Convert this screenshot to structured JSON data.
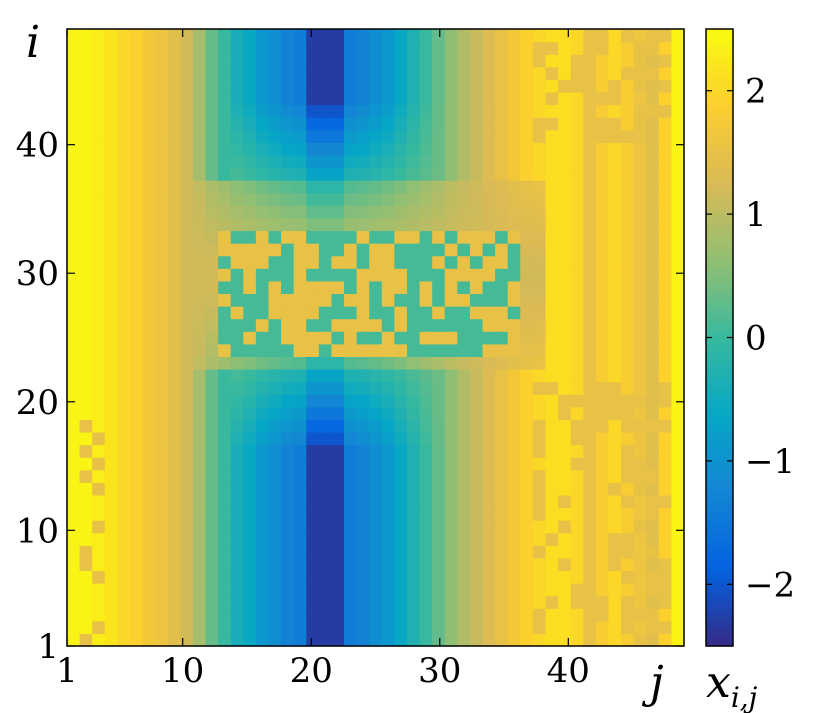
{
  "chart_data": {
    "type": "heatmap",
    "title": "",
    "xlabel": "j",
    "ylabel": "i",
    "colorbar_label": "x",
    "colorbar_label_subscript": "i,j",
    "xlim": [
      1,
      49
    ],
    "ylim": [
      1,
      49
    ],
    "x_ticks": [
      "1",
      "10",
      "20",
      "30",
      "40"
    ],
    "x_tick_values": [
      1,
      10,
      20,
      30,
      40
    ],
    "y_ticks": [
      "1",
      "10",
      "20",
      "30",
      "40"
    ],
    "y_tick_values": [
      1,
      10,
      20,
      30,
      40
    ],
    "colorbar_ticks": [
      "2",
      "1",
      "0",
      "−1",
      "−2"
    ],
    "colorbar_tick_values": [
      2,
      1,
      0,
      -1,
      -2
    ],
    "clim": [
      -2.5,
      2.5
    ],
    "colormap": "parula",
    "colormap_stops": [
      "#352a87",
      "#0363e1",
      "#1485d4",
      "#06a7c6",
      "#38b99e",
      "#92bf73",
      "#d9ba56",
      "#fcce2e",
      "#f9fb0e"
    ],
    "column_profile_j_1_to_49": [
      2.4,
      2.4,
      2.3,
      2.2,
      2.0,
      1.9,
      1.7,
      1.6,
      1.4,
      1.2,
      0.8,
      0.3,
      0.0,
      -0.4,
      -0.6,
      -0.9,
      -1.1,
      -1.3,
      -1.4,
      -2.3,
      -2.3,
      -2.3,
      -1.4,
      -1.3,
      -1.1,
      -0.9,
      -0.6,
      -0.3,
      0.0,
      0.3,
      0.6,
      0.9,
      1.1,
      1.3,
      1.5,
      1.7,
      1.9,
      2.0,
      2.1,
      2.1,
      2.0,
      1.5,
      1.8,
      2.0,
      1.8,
      1.6,
      1.4,
      1.9,
      2.4
    ],
    "middle_band_rows": [
      23,
      37
    ],
    "checkerboard_rows": [
      24,
      33
    ],
    "checkerboard_cols": [
      13,
      36
    ],
    "checkerboard_levels": [
      0.1,
      1.5
    ],
    "grid": false
  }
}
